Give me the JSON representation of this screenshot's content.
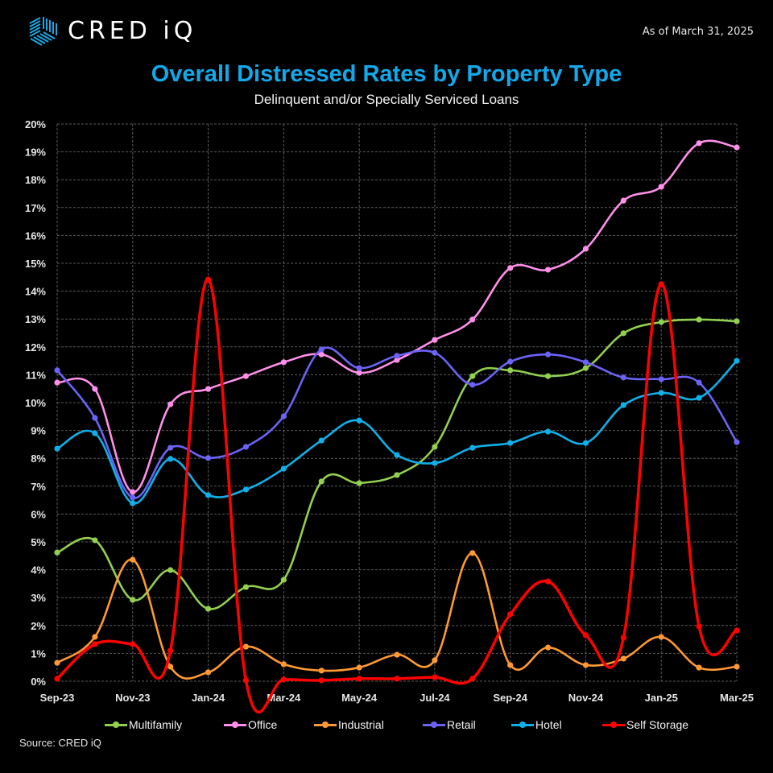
{
  "header": {
    "brand": "CRED iQ",
    "as_of": "As of March 31, 2025"
  },
  "source": "Source:   CRED iQ",
  "colors": {
    "title": "#13a8ea",
    "grid": "#5a5a5a",
    "background": "#000000"
  },
  "chart_data": {
    "type": "line",
    "title": "Overall Distressed Rates by Property Type",
    "subtitle": "Delinquent and/or Specially Serviced Loans",
    "xlabel": "",
    "ylabel": "",
    "ylim": [
      0,
      20
    ],
    "y_ticks": [
      "0%",
      "1%",
      "2%",
      "3%",
      "4%",
      "5%",
      "6%",
      "7%",
      "8%",
      "9%",
      "10%",
      "11%",
      "12%",
      "13%",
      "14%",
      "15%",
      "16%",
      "17%",
      "18%",
      "19%",
      "20%"
    ],
    "x": [
      "Sep-23",
      "Oct-23",
      "Nov-23",
      "Dec-23",
      "Jan-24",
      "Feb-24",
      "Mar-24",
      "Apr-24",
      "May-24",
      "Jun-24",
      "Jul-24",
      "Aug-24",
      "Sep-24",
      "Oct-24",
      "Nov-24",
      "Dec-24",
      "Jan-25",
      "Feb-25",
      "Mar-25"
    ],
    "x_tick_labels": [
      "Sep-23",
      "Nov-23",
      "Jan-24",
      "Mar-24",
      "May-24",
      "Jul-24",
      "Sep-24",
      "Nov-24",
      "Jan-25",
      "Mar-25"
    ],
    "grid": true,
    "legend_position": "bottom",
    "smooth": true,
    "series": [
      {
        "name": "Multifamily",
        "color": "#92d050",
        "values": [
          4.62,
          5.06,
          2.92,
          3.99,
          2.6,
          3.38,
          3.64,
          7.17,
          7.11,
          7.4,
          8.41,
          10.95,
          11.16,
          10.95,
          11.24,
          12.49,
          12.89,
          12.98,
          12.92
        ]
      },
      {
        "name": "Office",
        "color": "#ff8fe8",
        "values": [
          10.72,
          10.49,
          6.79,
          9.94,
          10.49,
          10.95,
          11.45,
          11.73,
          11.07,
          11.53,
          12.25,
          12.98,
          14.83,
          14.77,
          15.52,
          17.25,
          17.75,
          19.31,
          19.16
        ]
      },
      {
        "name": "Industrial",
        "color": "#ff9933",
        "values": [
          0.66,
          1.59,
          4.36,
          0.52,
          0.32,
          1.24,
          0.61,
          0.38,
          0.49,
          0.95,
          0.75,
          4.6,
          0.58,
          1.21,
          0.58,
          0.81,
          1.59,
          0.49,
          0.52
        ]
      },
      {
        "name": "Retail",
        "color": "#6b63f5",
        "values": [
          11.16,
          9.45,
          6.59,
          8.38,
          8.01,
          8.41,
          9.51,
          11.91,
          11.24,
          11.68,
          11.79,
          10.64,
          11.47,
          11.73,
          11.45,
          10.9,
          10.84,
          10.72,
          8.58
        ]
      },
      {
        "name": "Hotel",
        "color": "#0fb0ea",
        "values": [
          8.35,
          8.9,
          6.39,
          7.98,
          6.68,
          6.88,
          7.63,
          8.64,
          9.36,
          8.12,
          7.83,
          8.38,
          8.55,
          8.96,
          8.55,
          9.91,
          10.35,
          10.17,
          11.5
        ]
      },
      {
        "name": "Self Storage",
        "color": "#ff0000",
        "values": [
          0.09,
          1.33,
          1.33,
          1.1,
          14.42,
          0.03,
          0.06,
          0.03,
          0.09,
          0.09,
          0.14,
          0.09,
          2.4,
          3.58,
          1.65,
          1.56,
          14.25,
          1.97,
          1.82
        ]
      }
    ]
  }
}
